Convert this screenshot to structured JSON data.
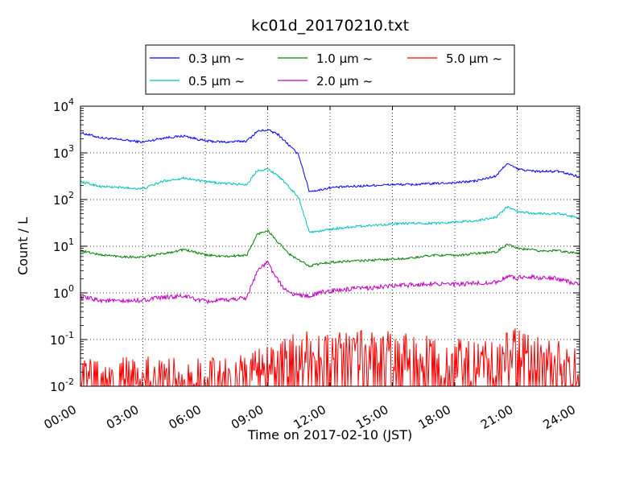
{
  "chart_data": {
    "type": "line",
    "title": "kc01d_20170210.txt",
    "xlabel": "Time on 2017-02-10 (JST)",
    "ylabel": "Count / L",
    "y_scale": "log",
    "ylim": [
      0.01,
      10000
    ],
    "xlim": [
      "00:00",
      "24:00"
    ],
    "x_ticks": [
      "00:00",
      "03:00",
      "06:00",
      "09:00",
      "12:00",
      "15:00",
      "18:00",
      "21:00",
      "24:00"
    ],
    "y_ticks": [
      {
        "base": "10",
        "exp": "-2"
      },
      {
        "base": "10",
        "exp": "-1"
      },
      {
        "base": "10",
        "exp": "0"
      },
      {
        "base": "10",
        "exp": "1"
      },
      {
        "base": "10",
        "exp": "2"
      },
      {
        "base": "10",
        "exp": "3"
      },
      {
        "base": "10",
        "exp": "4"
      }
    ],
    "grid": true,
    "legend_position": "top-center",
    "x_hours": [
      0,
      1,
      2,
      3,
      4,
      5,
      6,
      7,
      8,
      8.5,
      9,
      9.5,
      10,
      10.5,
      11,
      11.5,
      12,
      13,
      14,
      15,
      16,
      17,
      18,
      19,
      20,
      20.5,
      21,
      21.5,
      22,
      23,
      24
    ],
    "series": [
      {
        "name": "0.3 μm ~",
        "color": "#0000ff",
        "values": [
          2700,
          2100,
          1900,
          1700,
          2100,
          2300,
          1800,
          1700,
          1800,
          2900,
          3100,
          2500,
          1500,
          900,
          150,
          160,
          180,
          190,
          200,
          210,
          210,
          220,
          230,
          250,
          320,
          600,
          450,
          420,
          400,
          400,
          310
        ]
      },
      {
        "name": "0.5 μm ~",
        "color": "#00bfbf",
        "values": [
          240,
          190,
          180,
          170,
          250,
          290,
          240,
          220,
          210,
          420,
          450,
          330,
          190,
          110,
          20,
          21,
          23,
          26,
          28,
          30,
          31,
          31,
          33,
          35,
          42,
          70,
          55,
          52,
          50,
          50,
          40
        ]
      },
      {
        "name": "1.0 μm ~",
        "color": "#008000",
        "values": [
          8,
          6.5,
          6,
          5.8,
          7,
          8.5,
          6.5,
          6,
          6.5,
          18,
          22,
          12,
          7,
          5,
          3.8,
          4.2,
          4.5,
          4.8,
          5,
          5.3,
          5.6,
          6.5,
          6.3,
          7,
          7.5,
          11,
          9,
          8.5,
          8,
          8,
          7
        ]
      },
      {
        "name": "2.0 μm ~",
        "color": "#bf00bf",
        "values": [
          0.8,
          0.7,
          0.65,
          0.7,
          0.8,
          0.85,
          0.65,
          0.7,
          0.8,
          3,
          4.5,
          1.8,
          1,
          0.9,
          0.85,
          1,
          1.1,
          1.2,
          1.3,
          1.4,
          1.5,
          1.6,
          1.5,
          1.6,
          1.7,
          2.2,
          2.1,
          2.3,
          2.1,
          2,
          1.5
        ]
      },
      {
        "name": "5.0 μm ~",
        "color": "#ff0000",
        "values": [
          0.012,
          0.013,
          0.014,
          0.015,
          0.013,
          0.014,
          0.013,
          0.014,
          0.015,
          0.02,
          0.025,
          0.03,
          0.04,
          0.05,
          0.05,
          0.05,
          0.05,
          0.05,
          0.05,
          0.05,
          0.04,
          0.04,
          0.035,
          0.03,
          0.04,
          0.05,
          0.06,
          0.05,
          0.04,
          0.03,
          0.02
        ]
      }
    ]
  }
}
